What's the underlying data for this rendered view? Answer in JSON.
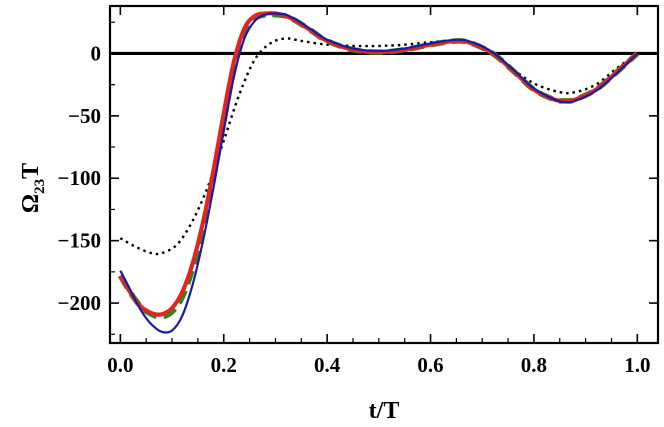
{
  "chart_data": {
    "type": "line",
    "title": "",
    "xlabel": "t/T",
    "ylabel": {
      "base": "Ω",
      "sub": "23",
      "suffix": "T"
    },
    "xlim": [
      -0.02,
      1.04
    ],
    "ylim": [
      -232,
      38
    ],
    "xticks": [
      0.0,
      0.2,
      0.4,
      0.6,
      0.8,
      1.0
    ],
    "xtick_labels": [
      "0.0",
      "0.2",
      "0.4",
      "0.6",
      "0.8",
      "1.0"
    ],
    "yticks": [
      0,
      -50,
      -100,
      -150,
      -200
    ],
    "ytick_labels": [
      "0",
      "−50",
      "−100",
      "−150",
      "−200"
    ],
    "reference_line": {
      "y": 0,
      "color": "#000000"
    },
    "grid": false,
    "legend": "none",
    "series": [
      {
        "style": "dotted",
        "color": "#000000",
        "x": [
          0.0,
          0.03,
          0.06,
          0.08,
          0.11,
          0.14,
          0.17,
          0.2,
          0.23,
          0.26,
          0.29,
          0.32,
          0.35,
          0.4,
          0.45,
          0.5,
          0.55,
          0.6,
          0.65,
          0.7,
          0.75,
          0.8,
          0.85,
          0.88,
          0.92,
          0.96,
          1.0
        ],
        "y": [
          -148,
          -155,
          -160,
          -160,
          -153,
          -134,
          -106,
          -70,
          -33,
          -5,
          8,
          12,
          10,
          7,
          6,
          6,
          7,
          9,
          10,
          4,
          -10,
          -24,
          -31,
          -31,
          -25,
          -12,
          0
        ]
      },
      {
        "style": "solid",
        "color": "#1a1aa6",
        "x": [
          0.0,
          0.02,
          0.04,
          0.06,
          0.08,
          0.1,
          0.12,
          0.14,
          0.16,
          0.18,
          0.2,
          0.22,
          0.24,
          0.26,
          0.28,
          0.3,
          0.32,
          0.34,
          0.37,
          0.4,
          0.45,
          0.5,
          0.55,
          0.6,
          0.65,
          0.68,
          0.72,
          0.76,
          0.8,
          0.84,
          0.86,
          0.88,
          0.92,
          0.96,
          1.0
        ],
        "y": [
          -174,
          -190,
          -206,
          -217,
          -223,
          -222,
          -210,
          -185,
          -150,
          -108,
          -62,
          -18,
          12,
          26,
          31,
          32,
          31,
          27,
          19,
          11,
          4,
          2,
          4,
          8,
          11,
          9,
          1,
          -13,
          -28,
          -37,
          -39,
          -38,
          -30,
          -16,
          0
        ]
      },
      {
        "style": "dashed",
        "color": "#1d8f1d",
        "x": [
          0.0,
          0.02,
          0.04,
          0.06,
          0.08,
          0.1,
          0.12,
          0.14,
          0.16,
          0.18,
          0.2,
          0.22,
          0.24,
          0.26,
          0.28,
          0.3,
          0.32,
          0.34,
          0.37,
          0.4,
          0.45,
          0.5,
          0.55,
          0.6,
          0.65,
          0.68,
          0.72,
          0.76,
          0.8,
          0.84,
          0.86,
          0.88,
          0.92,
          0.96,
          1.0
        ],
        "y": [
          -178,
          -192,
          -203,
          -209,
          -211,
          -207,
          -195,
          -172,
          -140,
          -100,
          -55,
          -12,
          16,
          28,
          31,
          31,
          30,
          26,
          18,
          10,
          3,
          1,
          3,
          7,
          10,
          8,
          0,
          -14,
          -29,
          -37,
          -38,
          -37,
          -29,
          -15,
          0
        ]
      },
      {
        "style": "solid",
        "color": "#e0261f",
        "x": [
          0.0,
          0.02,
          0.04,
          0.06,
          0.08,
          0.1,
          0.12,
          0.14,
          0.16,
          0.18,
          0.2,
          0.22,
          0.24,
          0.26,
          0.28,
          0.3,
          0.32,
          0.34,
          0.37,
          0.4,
          0.45,
          0.5,
          0.55,
          0.6,
          0.65,
          0.68,
          0.72,
          0.76,
          0.8,
          0.84,
          0.86,
          0.88,
          0.92,
          0.96,
          1.0
        ],
        "y": [
          -178,
          -192,
          -203,
          -208,
          -209,
          -204,
          -191,
          -168,
          -135,
          -94,
          -48,
          -6,
          20,
          30,
          32,
          32,
          30,
          26,
          18,
          10,
          3,
          1,
          3,
          7,
          10,
          8,
          0,
          -14,
          -29,
          -37,
          -38,
          -37,
          -29,
          -15,
          0
        ]
      }
    ]
  }
}
